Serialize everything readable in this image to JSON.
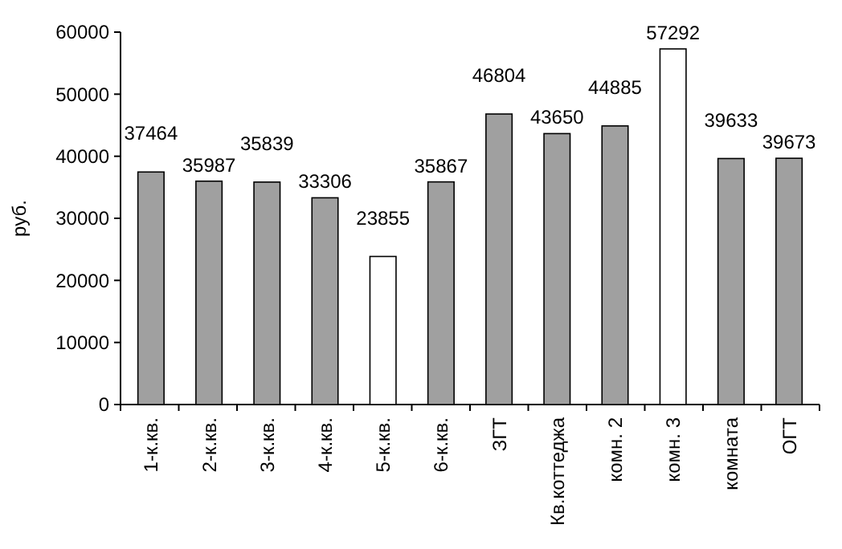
{
  "chart_data": {
    "type": "bar",
    "ylabel": "руб.",
    "categories": [
      "1-к.кв.",
      "2-к.кв.",
      "3-к.кв.",
      "4-к.кв.",
      "5-к.кв.",
      "6-к.кв.",
      "ЗГТ",
      "Кв.коттеджа",
      "комн. 2",
      "комн. 3",
      "комната",
      "ОГТ"
    ],
    "values": [
      37464,
      35987,
      35839,
      33306,
      23855,
      35867,
      46804,
      43650,
      44885,
      57292,
      39633,
      39673
    ],
    "colors": [
      "#a0a0a0",
      "#a0a0a0",
      "#a0a0a0",
      "#a0a0a0",
      "#ffffff",
      "#a0a0a0",
      "#a0a0a0",
      "#a0a0a0",
      "#a0a0a0",
      "#ffffff",
      "#a0a0a0",
      "#a0a0a0"
    ],
    "ylim": [
      0,
      60000
    ],
    "yticks": [
      0,
      10000,
      20000,
      30000,
      40000,
      50000,
      60000
    ],
    "data_labels": true
  }
}
